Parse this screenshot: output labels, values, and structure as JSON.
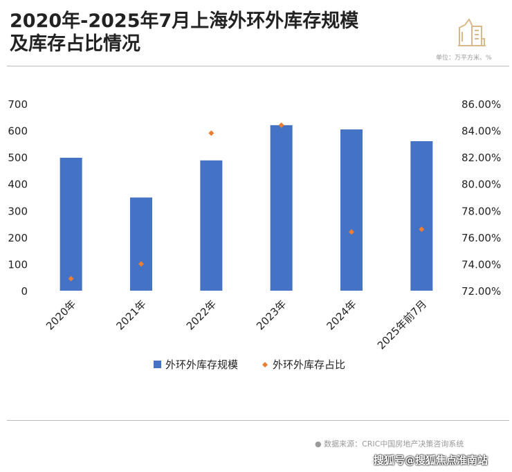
{
  "header": {
    "title_line1": "2020年-2025年7月上海外环外库存规模",
    "title_line2": "及库存占比情况",
    "unit": "单位：万平方米、%",
    "icon": "buildings-icon"
  },
  "footer": {
    "source": "● 数据来源：CRIC中国房地产决策咨询系统",
    "watermark": "搜狐号@搜狐焦点淮南站"
  },
  "colors": {
    "bar": "#4472c4",
    "dot": "#ed7d31"
  },
  "chart_data": {
    "type": "bar",
    "categories": [
      "2020年",
      "2021年",
      "2022年",
      "2023年",
      "2024年",
      "2025年前7月"
    ],
    "series": [
      {
        "name": "外环外库存规模",
        "type": "bar",
        "axis": "left",
        "values": [
          498,
          349,
          488,
          620,
          604,
          560
        ]
      },
      {
        "name": "外环外库存占比",
        "type": "scatter",
        "axis": "right",
        "values": [
          72.9,
          74.0,
          83.8,
          84.4,
          76.4,
          76.6
        ]
      }
    ],
    "ylim": [
      0,
      700
    ],
    "yticks": [
      "0",
      "100",
      "200",
      "300",
      "400",
      "500",
      "600",
      "700"
    ],
    "y2lim": [
      72,
      86
    ],
    "y2ticks": [
      "72.00%",
      "74.00%",
      "76.00%",
      "78.00%",
      "80.00%",
      "82.00%",
      "84.00%",
      "86.00%"
    ],
    "legend": "bottom",
    "grid": false
  }
}
